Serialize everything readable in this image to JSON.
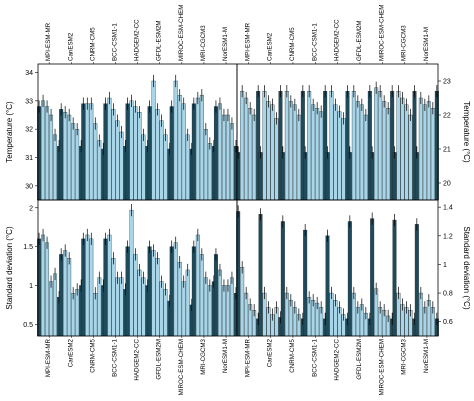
{
  "chart_data": [
    {
      "panel": "top-left",
      "type": "bar",
      "categories": [
        "MPI-ESM-MR",
        "CanESM2",
        "CNRM-CM5",
        "BCC-CSM1-1",
        "HADGEM2-CC",
        "GFDL-ESM2M",
        "MIROC-ESM-CHEM",
        "MRI-CGCM3",
        "NorESM1-M"
      ],
      "ylabel": "Temperature (°C)",
      "axis_side": "left",
      "ylim": [
        29.5,
        34.3
      ],
      "yticks": [
        30,
        31,
        32,
        33,
        34
      ],
      "series": [
        {
          "role": "dark",
          "values": [
            32.8,
            32.7,
            32.9,
            32.9,
            32.9,
            32.8,
            32.8,
            32.9,
            32.8
          ]
        },
        {
          "role": "light",
          "values": [
            33.0,
            32.6,
            32.9,
            33.1,
            33.0,
            33.7,
            33.7,
            33.1,
            32.9
          ]
        },
        {
          "role": "light",
          "values": [
            32.8,
            32.5,
            32.9,
            32.7,
            32.8,
            32.7,
            33.2,
            33.2,
            32.5
          ]
        },
        {
          "role": "light",
          "values": [
            32.5,
            32.2,
            32.2,
            32.3,
            32.6,
            32.3,
            32.9,
            32.0,
            32.5
          ]
        },
        {
          "role": "light",
          "values": [
            31.8,
            32.0,
            31.6,
            31.9,
            31.8,
            31.8,
            31.8,
            31.5,
            32.2
          ]
        },
        {
          "role": "dark",
          "values": [
            31.4,
            31.4,
            31.3,
            31.4,
            31.4,
            31.3,
            31.3,
            31.4,
            31.4
          ]
        }
      ]
    },
    {
      "panel": "top-right",
      "type": "bar",
      "categories": [
        "MPI-ESM-MR",
        "CanESM2",
        "CNRM-CM5",
        "BCC-CSM1-1",
        "HADGEM2-CC",
        "GFDL-ESM2M",
        "MIROC-ESM-CHEM",
        "MRI-CGCM3",
        "NorESM1-M"
      ],
      "ylabel": "Temperature (°C)",
      "axis_side": "right",
      "ylim": [
        19.5,
        23.5
      ],
      "yticks": [
        20,
        21,
        22,
        23
      ],
      "series": [
        {
          "role": "dark",
          "values": [
            20.9,
            20.9,
            20.9,
            20.9,
            20.9,
            20.9,
            20.9,
            20.9,
            20.9
          ]
        },
        {
          "role": "light",
          "values": [
            22.7,
            22.7,
            22.7,
            22.7,
            22.7,
            22.7,
            22.8,
            22.7,
            22.5
          ]
        },
        {
          "role": "light",
          "values": [
            22.5,
            22.4,
            22.4,
            22.3,
            22.3,
            22.4,
            22.7,
            22.5,
            22.3
          ]
        },
        {
          "role": "light",
          "values": [
            22.2,
            22.3,
            22.3,
            22.2,
            22.1,
            22.3,
            22.4,
            22.3,
            22.4
          ]
        },
        {
          "role": "light",
          "values": [
            22.0,
            21.9,
            22.0,
            22.1,
            21.9,
            22.0,
            22.2,
            22.0,
            22.2
          ]
        },
        {
          "role": "dark",
          "values": [
            22.7,
            22.7,
            22.7,
            22.7,
            22.7,
            22.7,
            22.7,
            22.7,
            22.7
          ]
        }
      ]
    },
    {
      "panel": "bottom-left",
      "type": "bar",
      "categories": [
        "MPI-ESM-MR",
        "CanESM2",
        "CNRM-CM5",
        "BCC-CSM1-1",
        "HADGEM2-CC",
        "GFDL-ESM2M",
        "MIROC-ESM-CHEM",
        "MRI-CGCM3",
        "NorESM1-M"
      ],
      "ylabel": "Standard deviation (°C)",
      "axis_side": "left",
      "ylim": [
        0.35,
        2.1
      ],
      "yticks": [
        0.5,
        1.0,
        1.5,
        2.0
      ],
      "series": [
        {
          "role": "dark",
          "values": [
            1.6,
            1.4,
            1.6,
            1.6,
            1.5,
            1.5,
            1.5,
            1.5,
            1.4
          ]
        },
        {
          "role": "light",
          "values": [
            1.65,
            1.45,
            1.65,
            1.65,
            1.97,
            1.45,
            1.55,
            1.65,
            1.2
          ]
        },
        {
          "role": "light",
          "values": [
            1.55,
            1.35,
            1.6,
            1.35,
            1.4,
            1.35,
            1.3,
            1.4,
            1.0
          ]
        },
        {
          "role": "light",
          "values": [
            1.05,
            0.9,
            0.9,
            1.1,
            1.2,
            1.05,
            1.05,
            1.1,
            1.0
          ]
        },
        {
          "role": "light",
          "values": [
            1.15,
            0.95,
            1.1,
            1.1,
            1.1,
            0.95,
            1.2,
            1.0,
            1.1
          ]
        },
        {
          "role": "dark",
          "values": [
            0.85,
            1.0,
            1.0,
            0.95,
            1.0,
            0.8,
            0.75,
            1.05,
            0.9
          ]
        }
      ]
    },
    {
      "panel": "bottom-right",
      "type": "bar",
      "categories": [
        "MPI-ESM-MR",
        "CanESM2",
        "CNRM-CM5",
        "BCC-CSM1-1",
        "HADGEM2-CC",
        "GFDL-ESM2M",
        "MIROC-ESM-CHEM",
        "MRI-CGCM3",
        "NorESM1-M"
      ],
      "ylabel": "Standard deviation (°C)",
      "axis_side": "right",
      "ylim": [
        0.5,
        1.45
      ],
      "yticks": [
        0.6,
        0.8,
        1.0,
        1.2,
        1.4
      ],
      "series": [
        {
          "role": "dark",
          "values": [
            1.37,
            1.35,
            1.3,
            1.24,
            1.2,
            1.3,
            1.32,
            1.31,
            1.28
          ]
        },
        {
          "role": "light",
          "values": [
            0.98,
            0.8,
            0.8,
            0.77,
            0.8,
            0.8,
            0.83,
            0.8,
            0.8
          ]
        },
        {
          "role": "light",
          "values": [
            0.8,
            0.7,
            0.75,
            0.75,
            0.75,
            0.7,
            0.7,
            0.72,
            0.7
          ]
        },
        {
          "role": "light",
          "values": [
            0.72,
            0.65,
            0.7,
            0.73,
            0.7,
            0.72,
            0.68,
            0.7,
            0.75
          ]
        },
        {
          "role": "light",
          "values": [
            0.68,
            0.7,
            0.65,
            0.7,
            0.65,
            0.66,
            0.64,
            0.68,
            0.7
          ]
        },
        {
          "role": "dark",
          "values": [
            0.62,
            0.63,
            0.62,
            0.62,
            0.62,
            0.62,
            0.62,
            0.62,
            0.62
          ]
        }
      ]
    }
  ]
}
